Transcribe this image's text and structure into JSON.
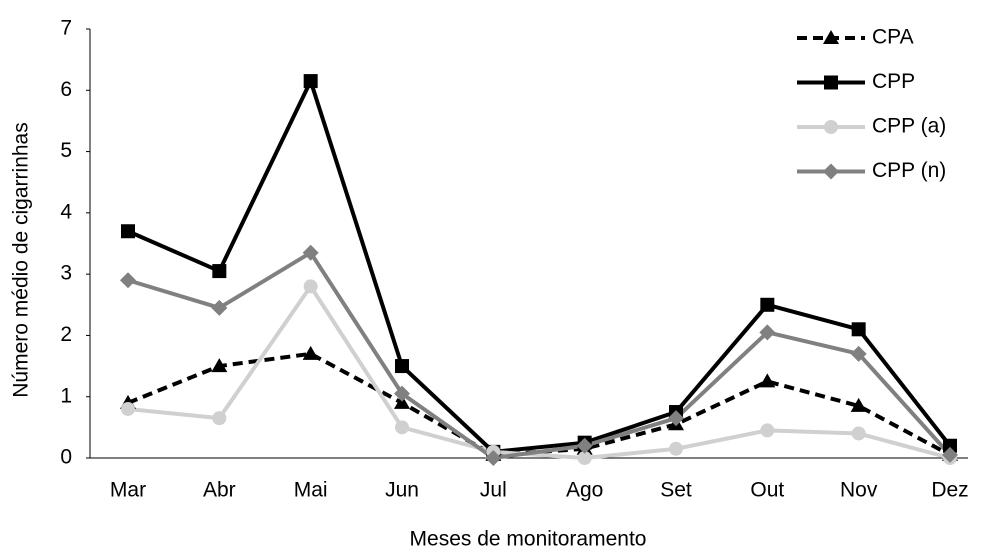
{
  "chart_data": {
    "type": "line",
    "xlabel": "Meses de monitoramento",
    "ylabel": "Número médio de cigarrinhas",
    "categories": [
      "Mar",
      "Abr",
      "Mai",
      "Jun",
      "Jul",
      "Ago",
      "Set",
      "Out",
      "Nov",
      "Dez"
    ],
    "ylim": [
      0,
      7
    ],
    "yticks": [
      0,
      1,
      2,
      3,
      4,
      5,
      6,
      7
    ],
    "grid": false,
    "legend": "upper right",
    "series": [
      {
        "name": "CPA",
        "color": "#000000",
        "marker": "triangle",
        "dashed": true,
        "values": [
          0.9,
          1.5,
          1.7,
          0.9,
          0.05,
          0.15,
          0.55,
          1.25,
          0.85,
          0.05
        ]
      },
      {
        "name": "CPP",
        "color": "#000000",
        "marker": "square",
        "dashed": false,
        "values": [
          3.7,
          3.05,
          6.15,
          1.5,
          0.1,
          0.25,
          0.75,
          2.5,
          2.1,
          0.2
        ]
      },
      {
        "name": "CPP (a)",
        "color": "#d0d0d0",
        "marker": "circle",
        "dashed": false,
        "values": [
          0.8,
          0.65,
          2.8,
          0.5,
          0.1,
          0.0,
          0.15,
          0.45,
          0.4,
          0.0
        ]
      },
      {
        "name": "CPP (n)",
        "color": "#808080",
        "marker": "diamond",
        "dashed": false,
        "values": [
          2.9,
          2.45,
          3.35,
          1.05,
          0.0,
          0.2,
          0.65,
          2.05,
          1.7,
          0.05
        ]
      }
    ]
  }
}
